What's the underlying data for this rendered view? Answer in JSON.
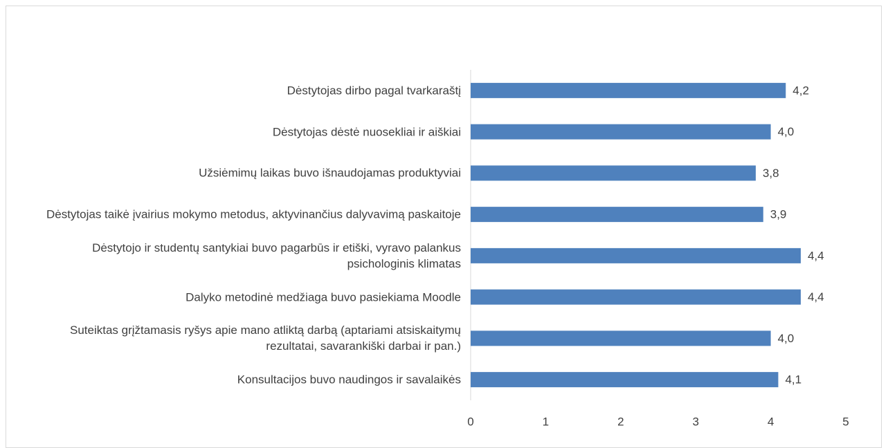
{
  "chart_data": {
    "type": "barh",
    "categories": [
      "Dėstytojas dirbo pagal tvarkaraštį",
      "Dėstytojas dėstė nuosekliai ir aiškiai",
      "Užsiėmimų laikas buvo išnaudojamas produktyviai",
      "Dėstytojas taikė įvairius mokymo metodus, aktyvinančius dalyvavimą paskaitoje",
      "Dėstytojo ir studentų santykiai buvo pagarbūs ir etiški, vyravo palankus psichologinis klimatas",
      "Dalyko metodinė medžiaga buvo pasiekiama Moodle",
      "Suteiktas grįžtamasis ryšys apie mano atliktą darbą (aptariami atsiskaitymų rezultatai, savarankiški darbai ir pan.)",
      "Konsultacijos buvo naudingos ir savalaikės"
    ],
    "values": [
      4.2,
      4.0,
      3.8,
      3.9,
      4.4,
      4.4,
      4.0,
      4.1
    ],
    "value_labels": [
      "4,2",
      "4,0",
      "3,8",
      "3,9",
      "4,4",
      "4,4",
      "4,0",
      "4,1"
    ],
    "color": "#4f81bd",
    "xlim": [
      0,
      5
    ],
    "xticks": [
      0,
      1,
      2,
      3,
      4,
      5
    ],
    "grid": false
  }
}
